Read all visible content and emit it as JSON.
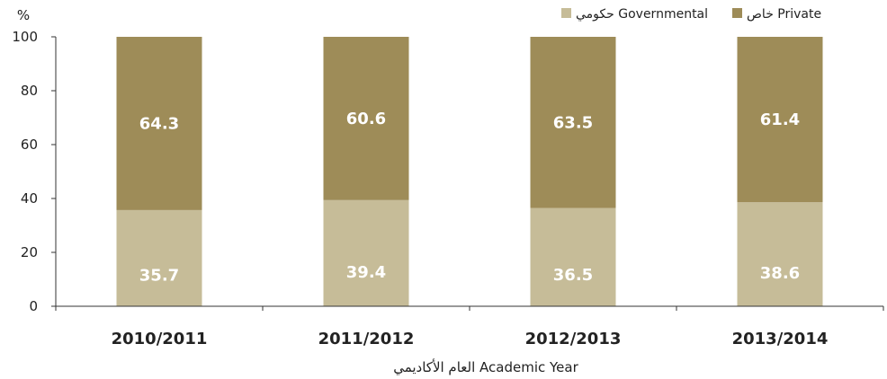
{
  "chart_data": {
    "type": "bar",
    "stacked": true,
    "categories": [
      "2010/2011",
      "2011/2012",
      "2012/2013",
      "2013/2014"
    ],
    "series": [
      {
        "name": "حكومي Governmental",
        "color": "#c6bc98",
        "values": [
          35.7,
          39.4,
          36.5,
          38.6
        ]
      },
      {
        "name": "خاص Private",
        "color": "#9e8c58",
        "values": [
          64.3,
          60.6,
          63.5,
          61.4
        ]
      }
    ],
    "title": "",
    "xlabel": "العام الأكاديمي  Academic Year",
    "ylabel": "%",
    "ylim": [
      0,
      100
    ],
    "yticks": [
      0,
      20,
      40,
      60,
      80,
      100
    ],
    "grid": false,
    "legend": "top-right"
  }
}
